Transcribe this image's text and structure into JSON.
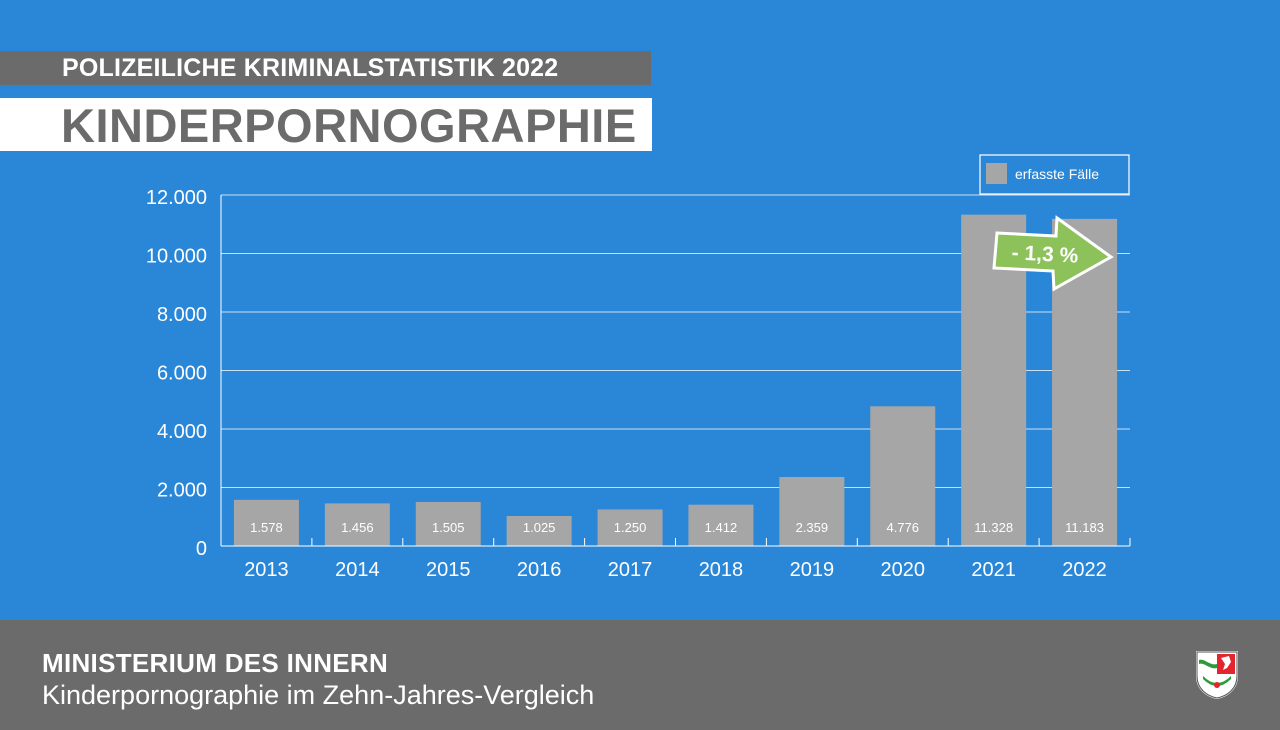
{
  "header": {
    "kicker": "POLIZEILICHE KRIMINALSTATISTIK 2022",
    "title": "KINDERPORNOGRAPHIE"
  },
  "footer": {
    "ministry": "MINISTERIUM DES INNERN",
    "subtitle": "Kinderpornographie im Zehn-Jahres-Vergleich",
    "crest_icon": "nrw-coat-of-arms-icon"
  },
  "colors": {
    "background": "#2a87d8",
    "bar": "#a6a6a6",
    "band": "#6b6b6b",
    "arrow": "#8dc25a"
  },
  "chart_data": {
    "type": "bar",
    "categories": [
      "2013",
      "2014",
      "2015",
      "2016",
      "2017",
      "2018",
      "2019",
      "2020",
      "2021",
      "2022"
    ],
    "series": [
      {
        "name": "erfasste Fälle",
        "values": [
          1578,
          1456,
          1505,
          1025,
          1250,
          1412,
          2359,
          4776,
          11328,
          11183
        ],
        "labels": [
          "1.578",
          "1.456",
          "1.505",
          "1.025",
          "1.250",
          "1.412",
          "2.359",
          "4.776",
          "11.328",
          "11.183"
        ]
      }
    ],
    "yticks": [
      0,
      2000,
      4000,
      6000,
      8000,
      10000,
      12000
    ],
    "ytick_labels": [
      "0",
      "2.000",
      "4.000",
      "6.000",
      "8.000",
      "10.000",
      "12.000"
    ],
    "ylim": [
      0,
      12000
    ],
    "grid": true,
    "legend": "top-right",
    "annotation": {
      "text": "- 1,3 %",
      "shape": "right-arrow",
      "between": [
        "2021",
        "2022"
      ]
    }
  }
}
